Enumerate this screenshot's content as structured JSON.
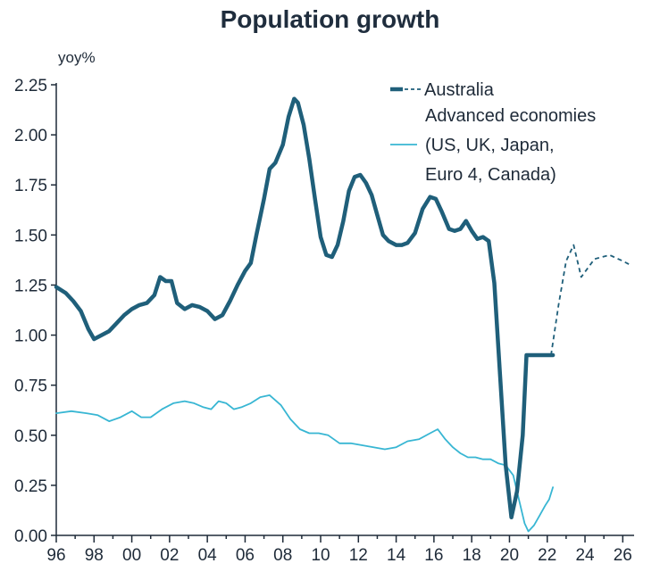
{
  "chart_data": {
    "type": "line",
    "title": "Population growth",
    "ylabel": "yoy%",
    "xlabel": "",
    "ylim": [
      0,
      2.25
    ],
    "xlim": [
      1996,
      2026.6
    ],
    "yticks": [
      "0.00",
      "0.25",
      "0.50",
      "0.75",
      "1.00",
      "1.25",
      "1.50",
      "1.75",
      "2.00",
      "2.25"
    ],
    "xticks": [
      "96",
      "98",
      "00",
      "02",
      "04",
      "06",
      "08",
      "10",
      "12",
      "14",
      "16",
      "18",
      "20",
      "22",
      "24",
      "26"
    ],
    "legend": {
      "position": "top-right",
      "entries": [
        "Australia",
        "Advanced economies",
        "(US, UK, Japan,",
        "Euro 4, Canada)"
      ]
    },
    "colors": {
      "australia": "#1f5f7a",
      "advanced": "#38b6d3",
      "axis": "#1e2a38"
    },
    "series": [
      {
        "name": "Australia",
        "style": "solid",
        "x": [
          1996.0,
          1996.5,
          1996.9,
          1997.3,
          1997.7,
          1998.0,
          1998.4,
          1998.8,
          1999.2,
          1999.6,
          2000.0,
          2000.4,
          2000.8,
          2001.2,
          2001.5,
          2001.8,
          2002.1,
          2002.4,
          2002.8,
          2003.2,
          2003.6,
          2004.0,
          2004.4,
          2004.8,
          2005.2,
          2005.6,
          2006.0,
          2006.3,
          2006.6,
          2007.0,
          2007.3,
          2007.6,
          2008.0,
          2008.3,
          2008.6,
          2008.8,
          2009.1,
          2009.4,
          2009.7,
          2010.0,
          2010.3,
          2010.6,
          2010.9,
          2011.2,
          2011.5,
          2011.8,
          2012.1,
          2012.4,
          2012.7,
          2013.0,
          2013.3,
          2013.6,
          2014.0,
          2014.3,
          2014.6,
          2015.0,
          2015.4,
          2015.8,
          2016.1,
          2016.4,
          2016.8,
          2017.1,
          2017.4,
          2017.7,
          2018.0,
          2018.3,
          2018.6,
          2018.9,
          2019.2,
          2019.5,
          2019.8,
          2020.1,
          2020.4,
          2020.7,
          2020.9,
          2021.2,
          2021.5,
          2021.8,
          2022.1,
          2022.3
        ],
        "values": [
          1.24,
          1.21,
          1.17,
          1.12,
          1.03,
          0.98,
          1.0,
          1.02,
          1.06,
          1.1,
          1.13,
          1.15,
          1.16,
          1.2,
          1.29,
          1.27,
          1.27,
          1.16,
          1.13,
          1.15,
          1.14,
          1.12,
          1.08,
          1.1,
          1.17,
          1.25,
          1.32,
          1.36,
          1.5,
          1.68,
          1.83,
          1.86,
          1.95,
          2.09,
          2.18,
          2.16,
          2.05,
          1.88,
          1.68,
          1.49,
          1.4,
          1.39,
          1.45,
          1.57,
          1.72,
          1.79,
          1.8,
          1.76,
          1.7,
          1.6,
          1.5,
          1.47,
          1.45,
          1.45,
          1.46,
          1.51,
          1.63,
          1.69,
          1.68,
          1.62,
          1.53,
          1.52,
          1.53,
          1.57,
          1.52,
          1.48,
          1.49,
          1.47,
          1.26,
          0.8,
          0.35,
          0.09,
          0.22,
          0.5,
          0.9,
          0.9,
          0.9,
          0.9,
          0.9,
          0.9
        ]
      },
      {
        "name": "Australia (forecast)",
        "style": "dashed",
        "x": [
          2022.2,
          2022.6,
          2023.0,
          2023.4,
          2023.8,
          2024.5,
          2025.3,
          2026.0,
          2026.4
        ],
        "values": [
          0.9,
          1.15,
          1.37,
          1.45,
          1.29,
          1.38,
          1.4,
          1.37,
          1.35
        ]
      },
      {
        "name": "Advanced economies (US, UK, Japan, Euro 4, Canada)",
        "style": "solid",
        "x": [
          1996.0,
          1996.8,
          1997.6,
          1998.2,
          1998.8,
          1999.4,
          2000.0,
          2000.5,
          2001.0,
          2001.6,
          2002.2,
          2002.8,
          2003.3,
          2003.8,
          2004.2,
          2004.6,
          2005.0,
          2005.4,
          2005.8,
          2006.3,
          2006.8,
          2007.3,
          2007.9,
          2008.4,
          2008.9,
          2009.4,
          2009.9,
          2010.4,
          2011.0,
          2011.6,
          2012.2,
          2012.8,
          2013.4,
          2014.0,
          2014.6,
          2015.2,
          2015.8,
          2016.2,
          2016.6,
          2017.0,
          2017.4,
          2017.8,
          2018.2,
          2018.6,
          2019.0,
          2019.4,
          2019.8,
          2020.2,
          2020.5,
          2020.8,
          2021.0,
          2021.3,
          2021.6,
          2021.9,
          2022.1,
          2022.3
        ],
        "values": [
          0.61,
          0.62,
          0.61,
          0.6,
          0.57,
          0.59,
          0.62,
          0.59,
          0.59,
          0.63,
          0.66,
          0.67,
          0.66,
          0.64,
          0.63,
          0.67,
          0.66,
          0.63,
          0.64,
          0.66,
          0.69,
          0.7,
          0.65,
          0.58,
          0.53,
          0.51,
          0.51,
          0.5,
          0.46,
          0.46,
          0.45,
          0.44,
          0.43,
          0.44,
          0.47,
          0.48,
          0.51,
          0.53,
          0.48,
          0.44,
          0.41,
          0.39,
          0.39,
          0.38,
          0.38,
          0.36,
          0.35,
          0.3,
          0.18,
          0.06,
          0.02,
          0.05,
          0.1,
          0.15,
          0.18,
          0.24
        ]
      }
    ]
  }
}
